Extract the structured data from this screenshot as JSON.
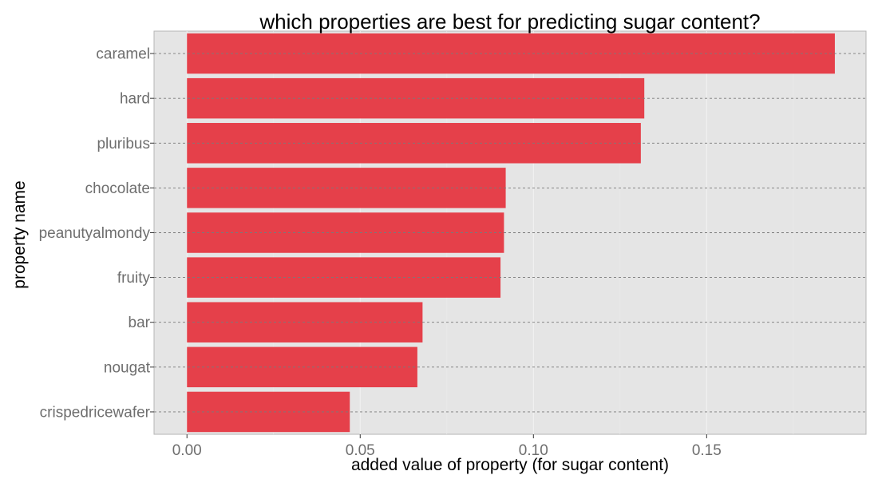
{
  "chart_data": {
    "type": "bar",
    "orientation": "horizontal",
    "title": "which properties are best for predicting sugar content?",
    "xlabel": "added value of property (for sugar content)",
    "ylabel": "property name",
    "categories": [
      "caramel",
      "hard",
      "pluribus",
      "chocolate",
      "peanutyalmondy",
      "fruity",
      "bar",
      "nougat",
      "crispedricewafer"
    ],
    "values": [
      0.187,
      0.132,
      0.131,
      0.092,
      0.0915,
      0.0905,
      0.068,
      0.0665,
      0.047
    ],
    "xlim": [
      -0.0095,
      0.196
    ],
    "xticks": [
      0.0,
      0.05,
      0.1,
      0.15
    ],
    "xtick_labels": [
      "0.00",
      "0.05",
      "0.10",
      "0.15"
    ],
    "bar_color": "#e5404a",
    "panel_background": "#e5e5e5",
    "grid": {
      "x_major": true,
      "y_major_dashed": true
    },
    "legend": "none"
  }
}
